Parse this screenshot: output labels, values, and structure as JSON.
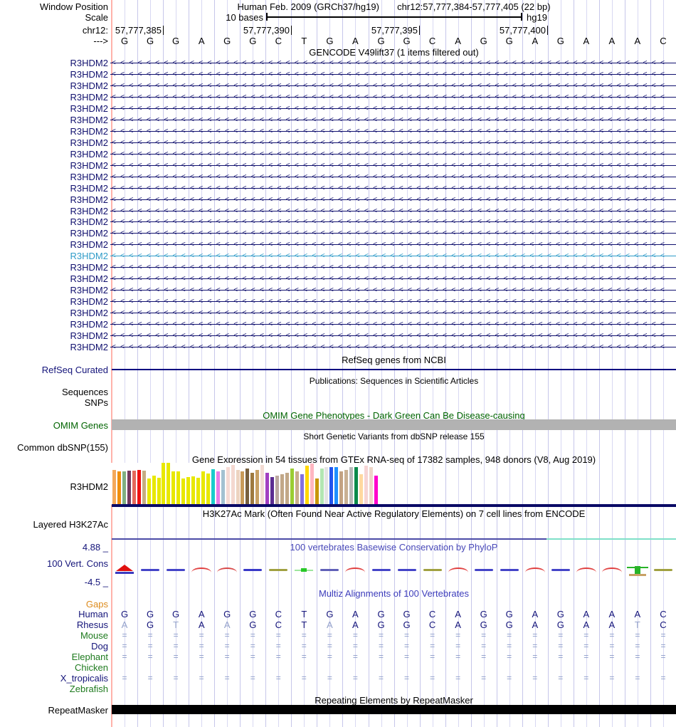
{
  "colors": {
    "grid_minor": "#d8d8f2",
    "grid_major": "#c6c6ea",
    "left_edge_line": "#ffb3ab",
    "navy_label": "#14147a",
    "gene_row": "#10106e",
    "gene_row_highlight": "#2e9bc8",
    "green_label": "#1e7a1e",
    "omim_green": "#006400",
    "omim_gray_bar": "#b2b2b2",
    "gaps_orange": "#dd8b1c",
    "phylop_title_blue": "#4848b8",
    "multiz_title_blue": "#3c3cbb",
    "muted_base": "#95a3cb",
    "equals_mark": "#8a9ac8",
    "refseq_line": "#000080",
    "gtex_baseline": "#0a0a66",
    "h3k27_line_left": "#4b4ba6",
    "h3k27_line_right": "#7fe0c8",
    "repeat_bar": "#000000"
  },
  "header": {
    "window_position_label": "Window Position",
    "assembly_title": "Human Feb. 2009 (GRCh37/hg19)",
    "position_title": "chr12:57,777,384-57,777,405 (22 bp)",
    "scale_label": "Scale",
    "scale_value": "10 bases",
    "assembly_short": "hg19",
    "chrom_label": "chr12:",
    "ruler_ticks": [
      "57,777,385",
      "57,777,390",
      "57,777,395",
      "57,777,400"
    ],
    "strand_arrow": "--->",
    "sequence": [
      "G",
      "G",
      "G",
      "A",
      "G",
      "G",
      "C",
      "T",
      "G",
      "A",
      "G",
      "G",
      "C",
      "A",
      "G",
      "G",
      "A",
      "G",
      "A",
      "A",
      "A",
      "C"
    ]
  },
  "tracks": {
    "gencode": {
      "title": "GENCODE V49lift37 (1 items filtered out)",
      "gene_label": "R3HDM2",
      "row_count": 26,
      "highlight_row_index": 17
    },
    "refseq": {
      "title": "RefSeq genes from NCBI",
      "label": "RefSeq Curated"
    },
    "publications": {
      "title": "Publications: Sequences in Scientific Articles",
      "label_sequences": "Sequences",
      "label_snps": "SNPs"
    },
    "omim": {
      "title": "OMIM Gene Phenotypes - Dark Green Can Be Disease-causing",
      "label": "OMIM Genes"
    },
    "dbsnp": {
      "title": "Short Genetic Variants from dbSNP release 155",
      "label": "Common dbSNP(155)"
    },
    "gtex": {
      "title": "Gene Expression in 54 tissues from GTEx RNA-seq of 17382 samples, 948 donors (V8, Aug 2019)",
      "label": "R3HDM2"
    },
    "h3k27ac": {
      "title": "H3K27Ac Mark (Often Found Near Active Regulatory Elements) on 7 cell lines from ENCODE",
      "label": "Layered H3K27Ac"
    },
    "phylop": {
      "title": "100 vertebrates Basewise Conservation by PhyloP",
      "label": "100 Vert. Cons",
      "max_label": "4.88 _",
      "min_label": "-4.5 _",
      "marks": [
        {
          "type": "peak",
          "color": "#e01010"
        },
        {
          "type": "dash",
          "color": "#4444c8"
        },
        {
          "type": "dash",
          "color": "#4444c8"
        },
        {
          "type": "arc",
          "color": "#e04040"
        },
        {
          "type": "arc",
          "color": "#d84848"
        },
        {
          "type": "dash",
          "color": "#3838c8"
        },
        {
          "type": "dash",
          "color": "#a0a040"
        },
        {
          "type": "dot",
          "color": "#28c828"
        },
        {
          "type": "dash",
          "color": "#6060b8"
        },
        {
          "type": "arc",
          "color": "#e04040"
        },
        {
          "type": "dash",
          "color": "#4444c8"
        },
        {
          "type": "dash",
          "color": "#4444c8"
        },
        {
          "type": "dash",
          "color": "#a0a040"
        },
        {
          "type": "arc",
          "color": "#e04040"
        },
        {
          "type": "dash",
          "color": "#4444c8"
        },
        {
          "type": "dash",
          "color": "#4444c8"
        },
        {
          "type": "arc",
          "color": "#e04040"
        },
        {
          "type": "dash",
          "color": "#4444c8"
        },
        {
          "type": "arc",
          "color": "#e04040"
        },
        {
          "type": "arc",
          "color": "#e04040"
        },
        {
          "type": "bar",
          "color": "#28b428"
        },
        {
          "type": "dash",
          "color": "#a0a040"
        }
      ]
    },
    "multiz": {
      "title": "Multiz Alignments of 100 Vertebrates",
      "species": [
        {
          "name": "Gaps",
          "label_color": "#dd8b1c",
          "pattern": "empty"
        },
        {
          "name": "Human",
          "label_color": "#14147a",
          "pattern": "bases",
          "bases": [
            "G",
            "G",
            "G",
            "A",
            "G",
            "G",
            "C",
            "T",
            "G",
            "A",
            "G",
            "G",
            "C",
            "A",
            "G",
            "G",
            "A",
            "G",
            "A",
            "A",
            "A",
            "C"
          ],
          "muted": []
        },
        {
          "name": "Rhesus",
          "label_color": "#14147a",
          "pattern": "bases",
          "bases": [
            "A",
            "G",
            "T",
            "A",
            "A",
            "G",
            "C",
            "T",
            "A",
            "A",
            "G",
            "G",
            "C",
            "A",
            "G",
            "G",
            "A",
            "G",
            "A",
            "A",
            "T",
            "C"
          ],
          "muted": [
            0,
            2,
            4,
            8,
            20
          ]
        },
        {
          "name": "Mouse",
          "label_color": "#1e7a1e",
          "pattern": "equals"
        },
        {
          "name": "Dog",
          "label_color": "#14147a",
          "pattern": "equals"
        },
        {
          "name": "Elephant",
          "label_color": "#1e7a1e",
          "pattern": "equals"
        },
        {
          "name": "Chicken",
          "label_color": "#1e7a1e",
          "pattern": "empty"
        },
        {
          "name": "X_tropicalis",
          "label_color": "#14147a",
          "pattern": "equals"
        },
        {
          "name": "Zebrafish",
          "label_color": "#1e7a1e",
          "pattern": "empty"
        }
      ],
      "equals_symbol": "="
    },
    "repeatmasker": {
      "title": "Repeating Elements by RepeatMasker",
      "label": "RepeatMasker"
    }
  },
  "chart_data": [
    {
      "type": "bar",
      "title": "Gene Expression in 54 tissues from GTEx RNA-seq of 17382 samples, 948 donors (V8, Aug 2019)",
      "gene": "R3HDM2",
      "xlabel": "",
      "ylabel": "expression (relative bar height, px; tissue names not labeled in image)",
      "ylim": [
        0,
        59
      ],
      "values": [
        48,
        46,
        46,
        47,
        47,
        48,
        47,
        36,
        40,
        37,
        58,
        58,
        46,
        46,
        36,
        38,
        39,
        37,
        46,
        43,
        49,
        46,
        48,
        52,
        55,
        48,
        46,
        50,
        44,
        48,
        55,
        44,
        38,
        40,
        42,
        44,
        50,
        46,
        42,
        54,
        57,
        36,
        50,
        52,
        52,
        52,
        46,
        48,
        52,
        52,
        42,
        54,
        52,
        40
      ],
      "colors": [
        "#f4a95a",
        "#ef8e0d",
        "#7faf81",
        "#733a5e",
        "#e4685a",
        "#ee1111",
        "#c5ad82",
        "#e8e800",
        "#e8e800",
        "#e8e800",
        "#e8e800",
        "#e8e800",
        "#e8e800",
        "#e8e800",
        "#e8e800",
        "#e8e800",
        "#e8e800",
        "#e8e800",
        "#e8e800",
        "#e8e800",
        "#19cccc",
        "#e87ce8",
        "#a3c1d1",
        "#f6dad4",
        "#f4d8d0",
        "#edd3c0",
        "#c89b5a",
        "#77603f",
        "#9e7a3f",
        "#c8a165",
        "#f2dad2",
        "#a23fc2",
        "#5c2d91",
        "#bca8a0",
        "#c2a888",
        "#c2a888",
        "#9acd32",
        "#c9ae8b",
        "#8470e0",
        "#ffd700",
        "#ffb6c1",
        "#c8960c",
        "#b2e6b2",
        "#e3e3e3",
        "#2255ee",
        "#1e90ff",
        "#c3a383",
        "#c9b194",
        "#b8b8b8",
        "#0a8a4a",
        "#ffd9a0",
        "#f6d4d4",
        "#eed6c8",
        "#ff00cc"
      ]
    },
    {
      "type": "line",
      "title": "100 vertebrates Basewise Conservation by PhyloP",
      "ylim": [
        -4.5,
        4.88
      ],
      "x": [
        1,
        2,
        3,
        4,
        5,
        6,
        7,
        8,
        9,
        10,
        11,
        12,
        13,
        14,
        15,
        16,
        17,
        18,
        19,
        20,
        21,
        22
      ],
      "note": "per-base conservation marks near 0; base 1 red peak, base 21 green bar"
    }
  ]
}
